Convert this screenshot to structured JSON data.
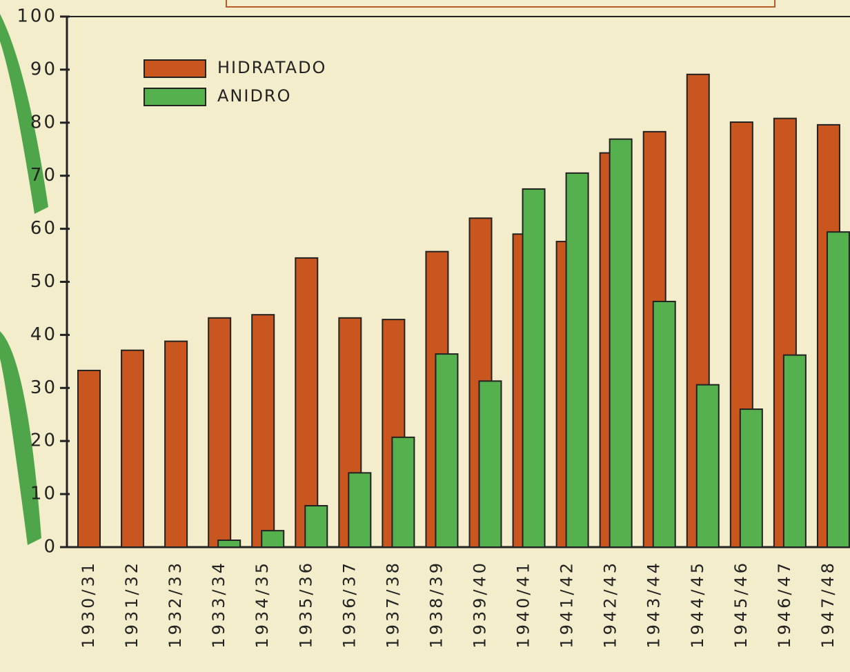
{
  "chart_data": {
    "type": "bar",
    "categories": [
      "1930/31",
      "1931/32",
      "1932/33",
      "1933/34",
      "1934/35",
      "1935/36",
      "1936/37",
      "1937/38",
      "1938/39",
      "1939/40",
      "1940/41",
      "1941/42",
      "1942/43",
      "1943/44",
      "1944/45",
      "1945/46",
      "1946/47",
      "1947/48"
    ],
    "series": [
      {
        "name": "HIDRATADO",
        "color": "#c9561f",
        "values": [
          33.3,
          37.1,
          38.8,
          43.2,
          43.8,
          54.5,
          43.2,
          42.9,
          55.7,
          62.0,
          59.0,
          57.6,
          74.3,
          78.3,
          89.1,
          80.1,
          80.8,
          79.6
        ]
      },
      {
        "name": "ANIDRO",
        "color": "#55b04e",
        "values": [
          null,
          null,
          null,
          1.3,
          3.1,
          7.8,
          14.0,
          20.7,
          36.4,
          31.3,
          67.5,
          70.5,
          76.9,
          46.3,
          30.6,
          26.0,
          36.2,
          59.4
        ]
      }
    ],
    "ylim": [
      0,
      100
    ],
    "yticks": [
      0,
      10,
      20,
      30,
      40,
      50,
      60,
      70,
      80,
      90,
      100
    ],
    "legend": "top-left"
  }
}
